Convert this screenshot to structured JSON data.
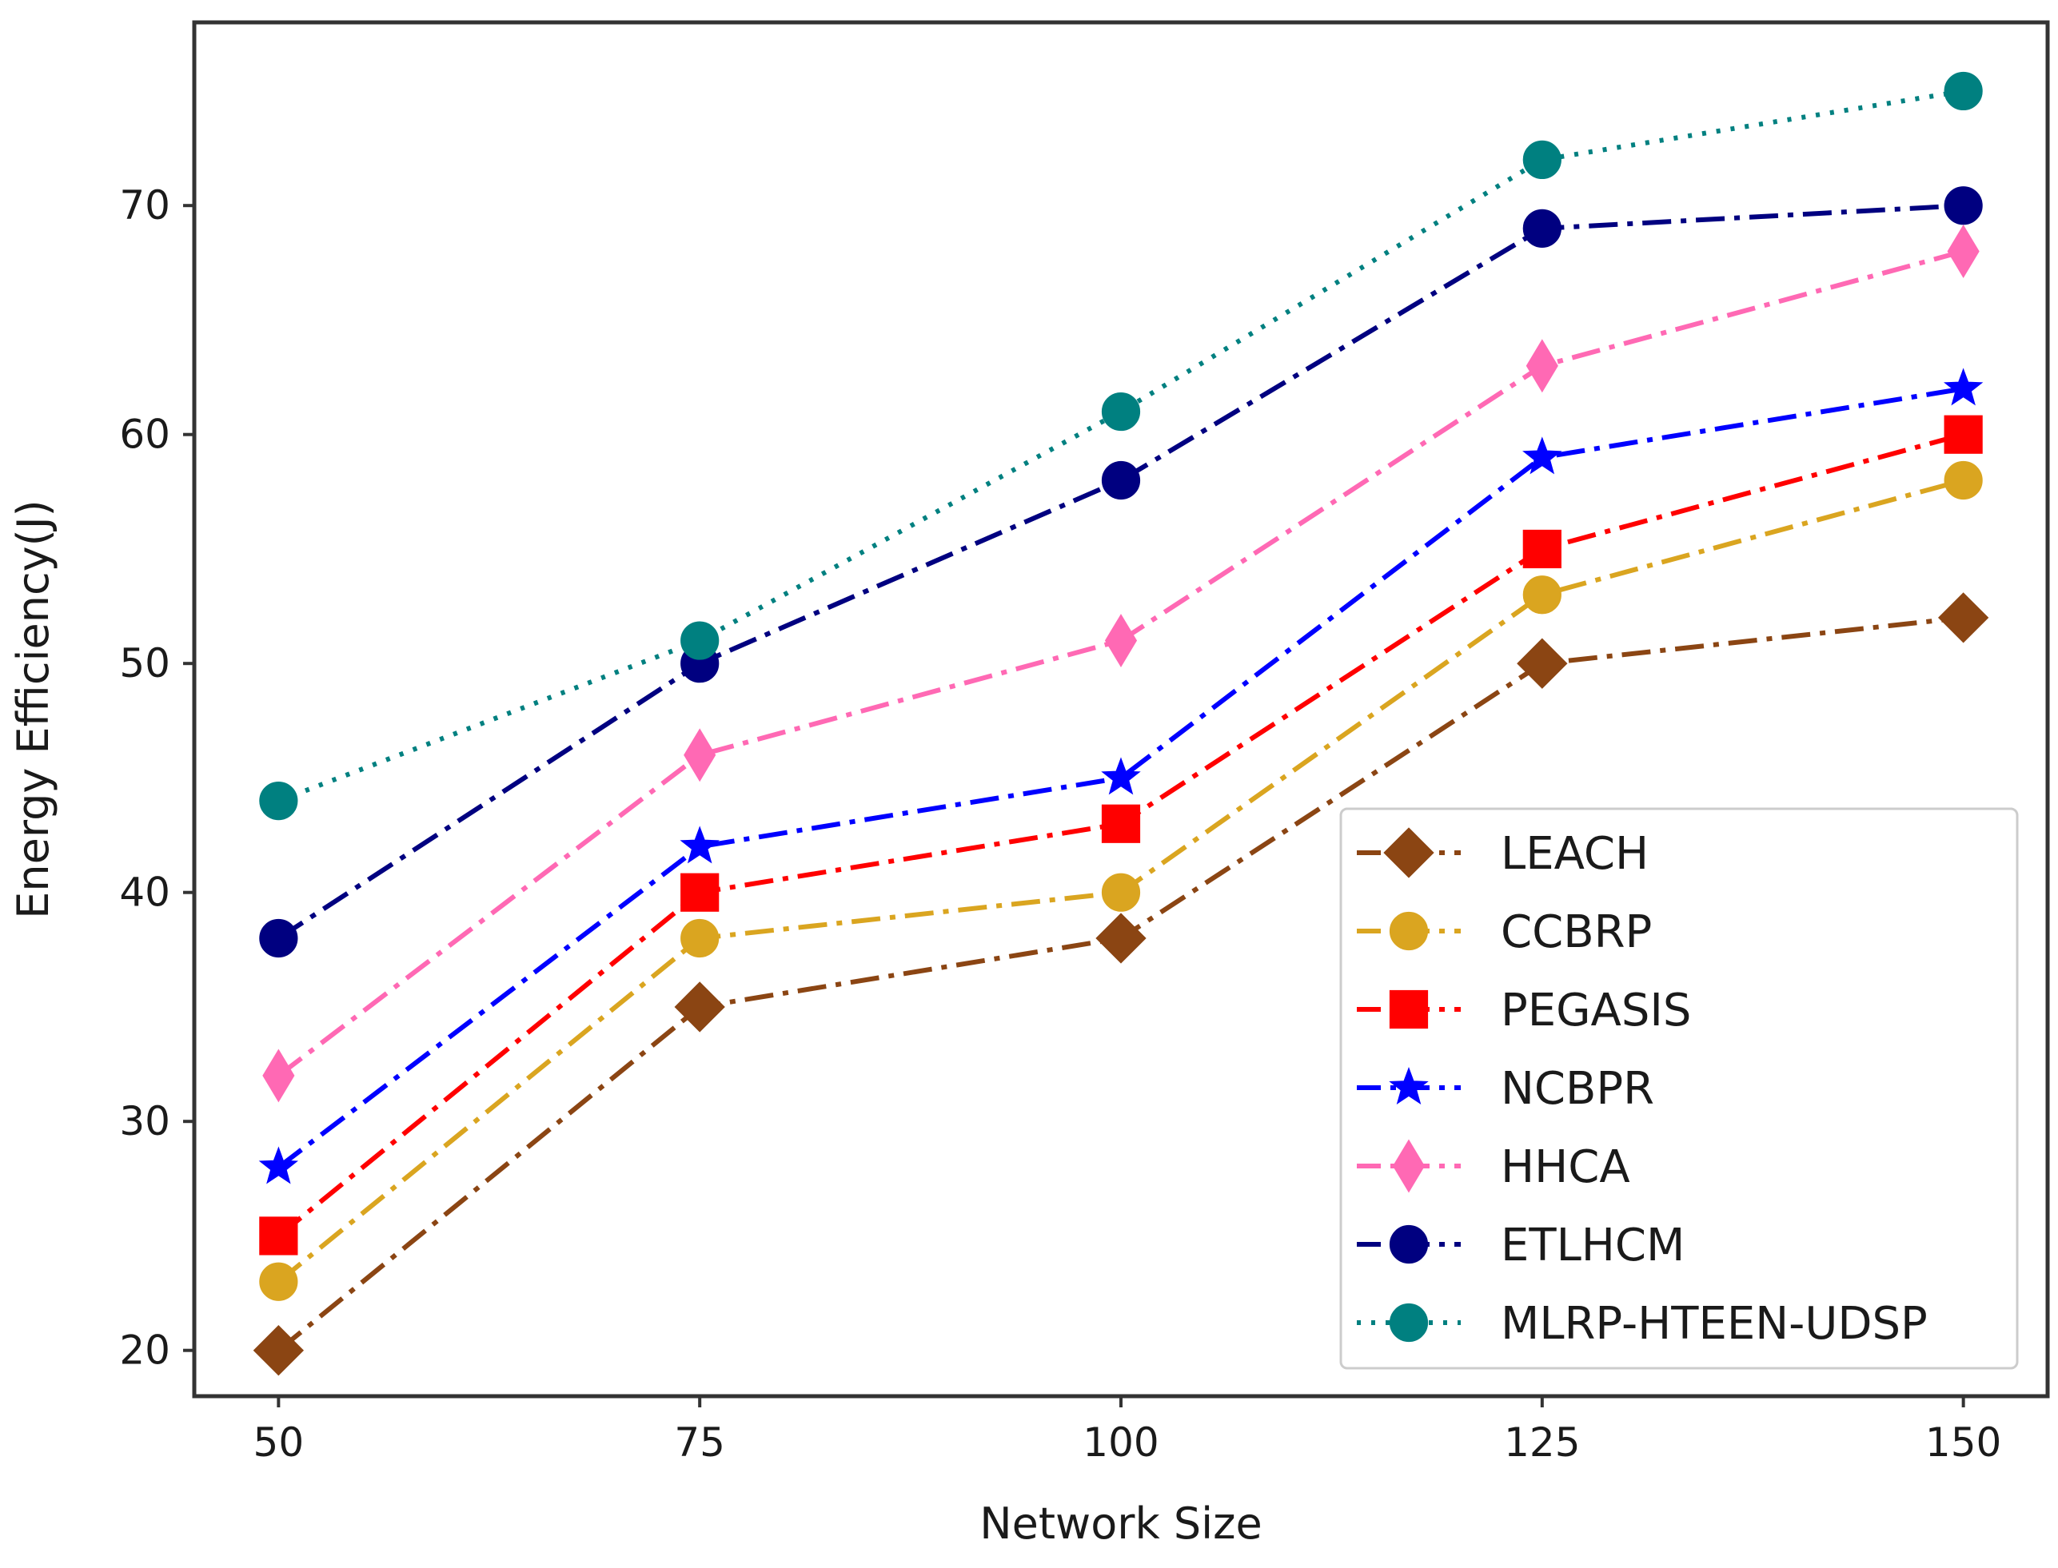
{
  "chart_data": {
    "type": "line",
    "title": "",
    "xlabel": "Network Size",
    "ylabel": "Energy Efficiency(J)",
    "x": [
      50,
      75,
      100,
      125,
      150
    ],
    "x_tick_labels": [
      "50",
      "75",
      "100",
      "125",
      "150"
    ],
    "xlim": [
      45,
      155
    ],
    "ylim": [
      18,
      78
    ],
    "y_ticks": [
      20,
      30,
      40,
      50,
      60,
      70
    ],
    "y_tick_labels": [
      "20",
      "30",
      "40",
      "50",
      "60",
      "70"
    ],
    "grid": false,
    "legend_position": "lower-right",
    "series": [
      {
        "name": "LEACH",
        "values": [
          20,
          35,
          38,
          50,
          52
        ],
        "color": "#8B4513",
        "marker": "diamond",
        "linestyle": "dashdot"
      },
      {
        "name": "CCBRP",
        "values": [
          23,
          38,
          40,
          53,
          58
        ],
        "color": "#DAA520",
        "marker": "circle",
        "linestyle": "dashdot"
      },
      {
        "name": "PEGASIS",
        "values": [
          25,
          40,
          43,
          55,
          60
        ],
        "color": "#FF0000",
        "marker": "square",
        "linestyle": "dashdot"
      },
      {
        "name": "NCBPR",
        "values": [
          28,
          42,
          45,
          59,
          62
        ],
        "color": "#0000FF",
        "marker": "star",
        "linestyle": "dashdot"
      },
      {
        "name": "HHCA",
        "values": [
          32,
          46,
          51,
          63,
          68
        ],
        "color": "#FF69B4",
        "marker": "thin-diamond",
        "linestyle": "dashdot"
      },
      {
        "name": "ETLHCM",
        "values": [
          38,
          50,
          58,
          69,
          70
        ],
        "color": "#000080",
        "marker": "circle",
        "linestyle": "dashdot"
      },
      {
        "name": "MLRP-HTEEN-UDSP",
        "values": [
          44,
          51,
          61,
          72,
          75
        ],
        "color": "#008080",
        "marker": "circle",
        "linestyle": "dotted"
      }
    ]
  }
}
